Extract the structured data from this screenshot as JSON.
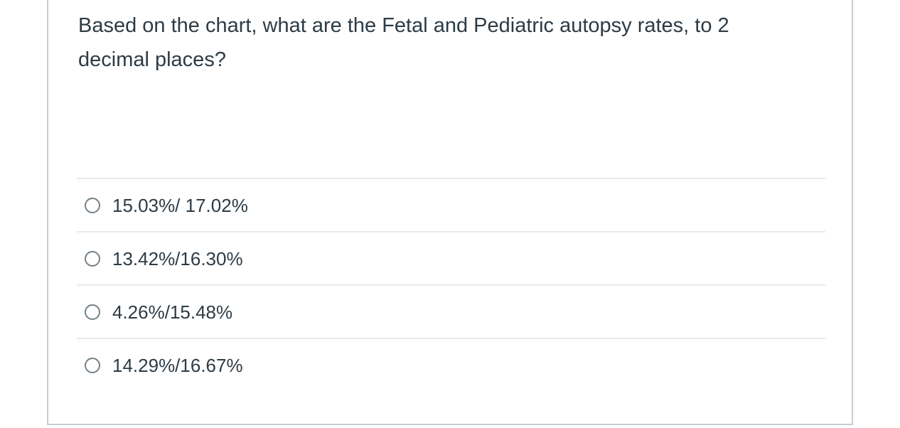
{
  "question": {
    "text": "Based on the chart, what are the Fetal and Pediatric autopsy rates, to 2 decimal places?"
  },
  "answers": [
    {
      "label": "15.03%/ 17.02%",
      "selected": false
    },
    {
      "label": "13.42%/16.30%",
      "selected": false
    },
    {
      "label": "4.26%/15.48%",
      "selected": false
    },
    {
      "label": "14.29%/16.67%",
      "selected": false
    }
  ]
}
